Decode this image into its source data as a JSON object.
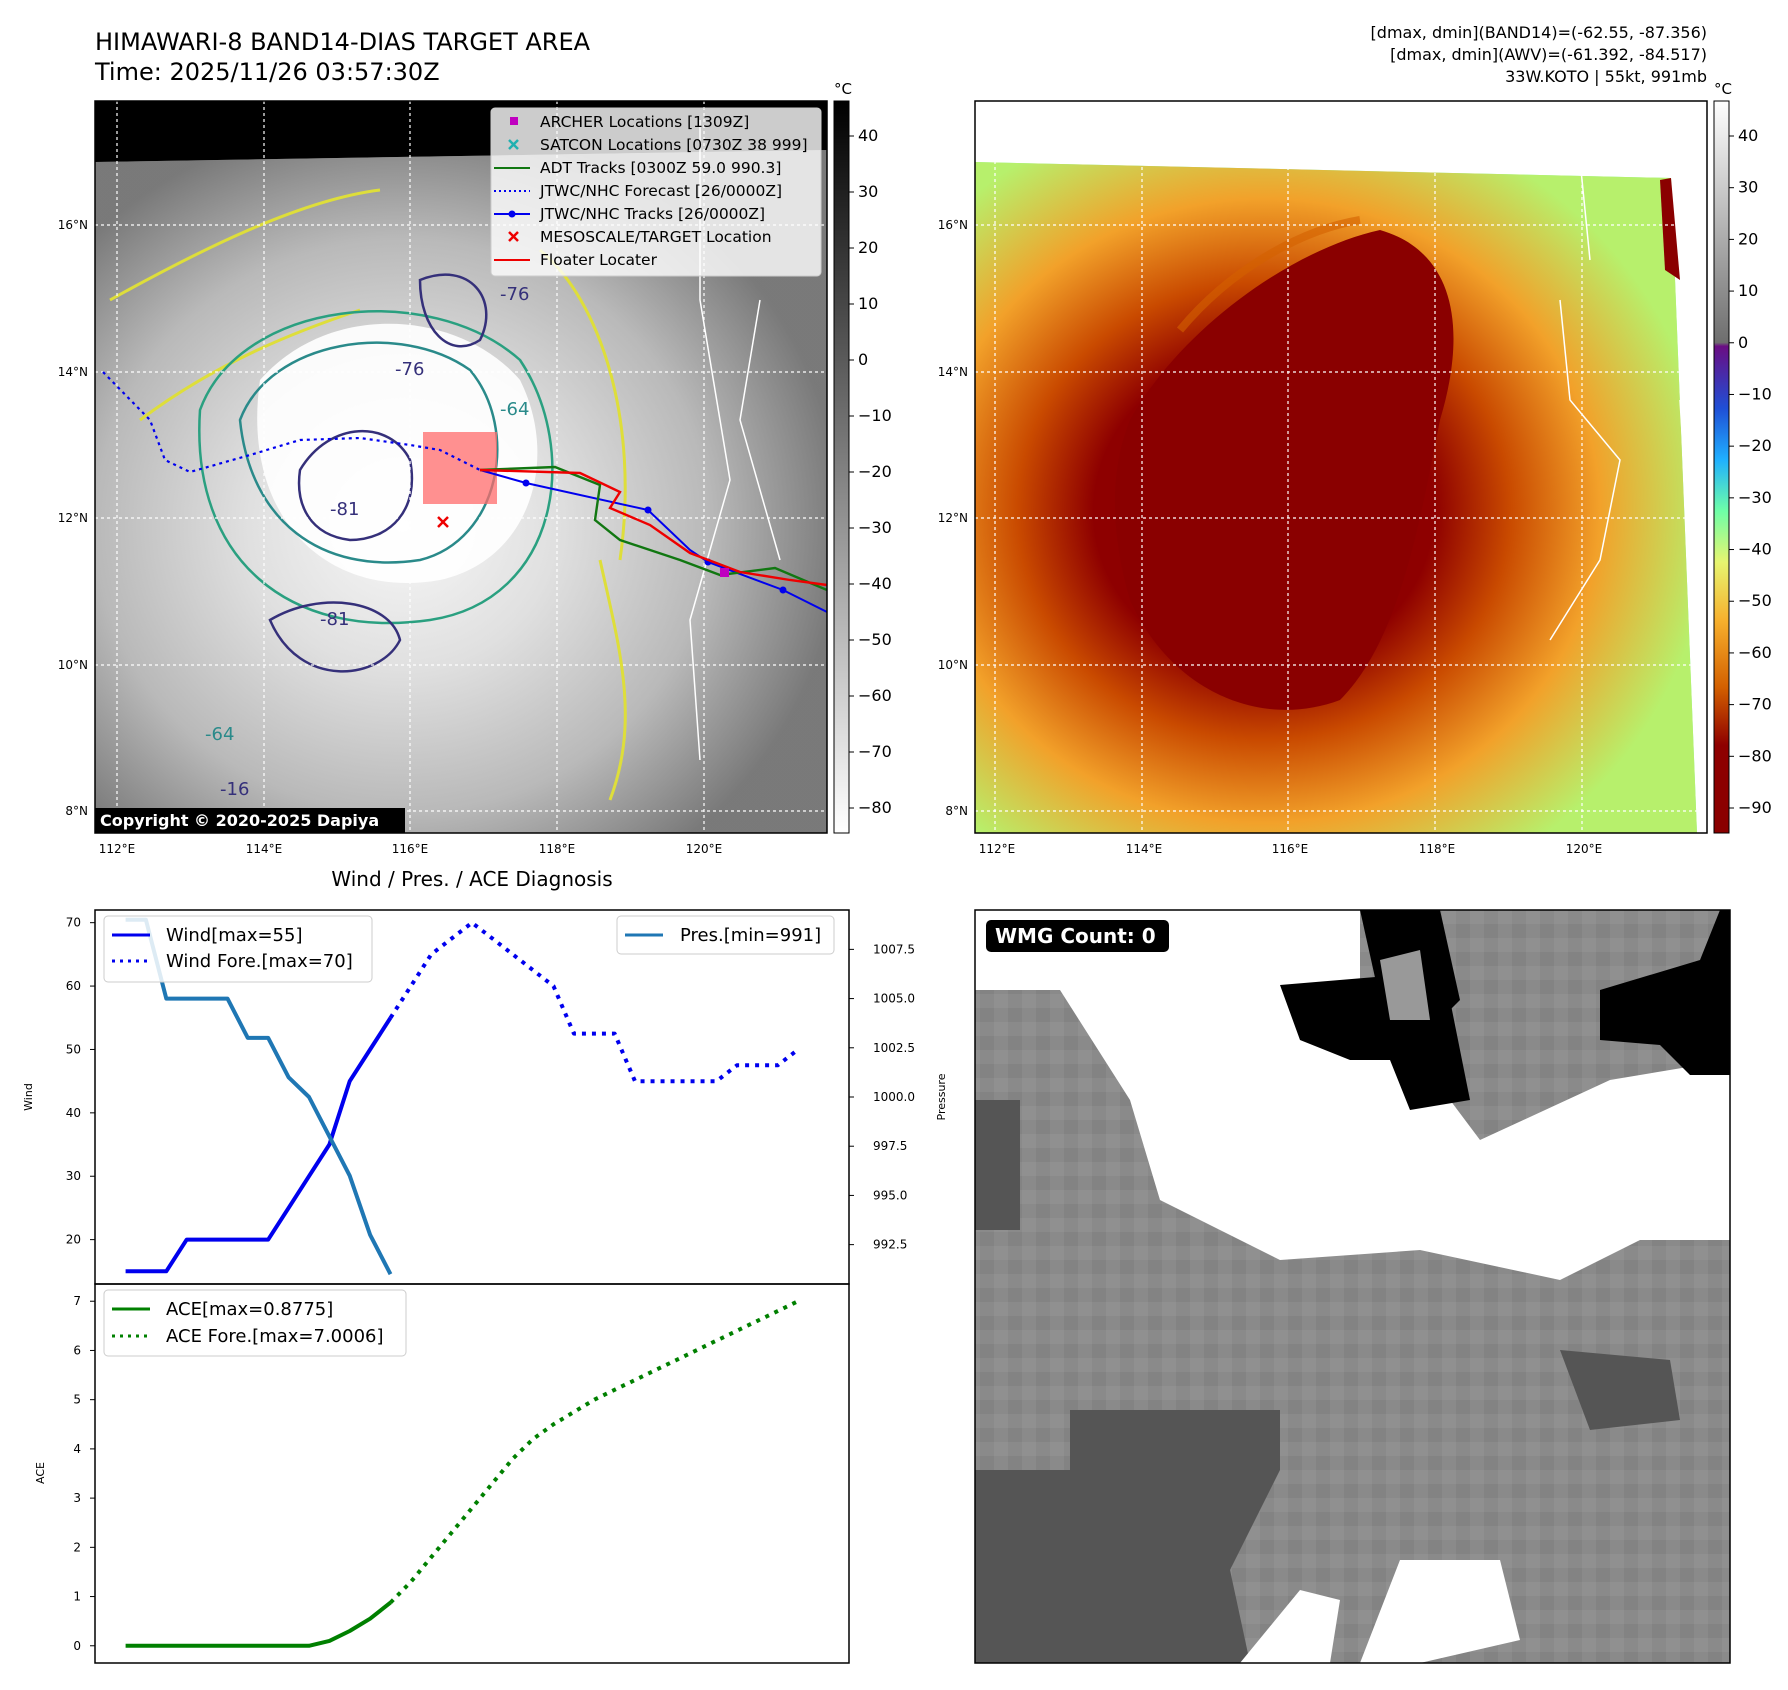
{
  "header": {
    "title_line1": "HIMAWARI-8 BAND14-DIAS TARGET AREA",
    "title_line2": "Time: 2025/11/26 03:57:30Z",
    "info_line1": "[dmax, dmin](BAND14)=(-62.55, -87.356)",
    "info_line2": "[dmax, dmin](AWV)=(-61.392, -84.517)",
    "info_line3": "33W.KOTO | 55kt, 991mb"
  },
  "map_left": {
    "copyright": "Copyright © 2020-2025 Dapiya",
    "lon_ticks": [
      "112°E",
      "114°E",
      "116°E",
      "118°E",
      "120°E"
    ],
    "lat_ticks": [
      "16°N",
      "14°N",
      "12°N",
      "10°N",
      "8°N"
    ],
    "contour_labels": [
      "-76",
      "-76",
      "-64",
      "-81",
      "-81",
      "-64",
      "-16"
    ],
    "legend": [
      {
        "label": "ARCHER Locations [1309Z]",
        "color": "#c000c0",
        "marker": "square"
      },
      {
        "label": "SATCON Locations [0730Z 38 999]",
        "color": "#20b0b0",
        "marker": "x"
      },
      {
        "label": "ADT Tracks [0300Z 59.0 990.3]",
        "color": "#117711",
        "marker": "line"
      },
      {
        "label": "JTWC/NHC Forecast [26/0000Z]",
        "color": "#0000ee",
        "marker": "dotted"
      },
      {
        "label": "JTWC/NHC Tracks [26/0000Z]",
        "color": "#0000ee",
        "marker": "line-dot"
      },
      {
        "label": "MESOSCALE/TARGET Location",
        "color": "#ee0000",
        "marker": "x"
      },
      {
        "label": "Floater Locater",
        "color": "#ee0000",
        "marker": "line"
      }
    ]
  },
  "colorbar_left": {
    "unit": "°C",
    "ticks": [
      "40",
      "30",
      "20",
      "10",
      "0",
      "−10",
      "−20",
      "−30",
      "−40",
      "−50",
      "−60",
      "−70",
      "−80"
    ]
  },
  "map_right": {
    "lon_ticks": [
      "112°E",
      "114°E",
      "116°E",
      "118°E",
      "120°E"
    ],
    "lat_ticks": [
      "16°N",
      "14°N",
      "12°N",
      "10°N",
      "8°N"
    ]
  },
  "colorbar_right": {
    "unit": "°C",
    "ticks": [
      "40",
      "30",
      "20",
      "10",
      "0",
      "−10",
      "−20",
      "−30",
      "−40",
      "−50",
      "−60",
      "−70",
      "−80",
      "−90"
    ]
  },
  "wmg_panel": {
    "label": "WMG Count: 0"
  },
  "chart_data": [
    {
      "type": "line",
      "title": "Wind / Pres. / ACE Diagnosis",
      "ylabel": "Wind",
      "y2label": "Pressure",
      "ylim": [
        13,
        72
      ],
      "y2lim": [
        990.5,
        1009.5
      ],
      "yticks": [
        20,
        30,
        40,
        50,
        60,
        70
      ],
      "y2ticks": [
        "992.5",
        "995.0",
        "997.5",
        "1000.0",
        "1002.5",
        "1005.0",
        "1007.5"
      ],
      "xlim": [
        -1.5,
        35.5
      ],
      "series": [
        {
          "name": "Wind[max=55]",
          "style": "solid",
          "color": "#0000ee",
          "axis": "left",
          "x": [
            0,
            1,
            2,
            3,
            4,
            5,
            6,
            7,
            8,
            9,
            10,
            11,
            12,
            13
          ],
          "y": [
            15,
            15,
            15,
            20,
            20,
            20,
            20,
            20,
            25,
            30,
            35,
            45,
            50,
            55
          ]
        },
        {
          "name": "Wind Fore.[max=70]",
          "style": "dotted",
          "color": "#0000ee",
          "axis": "left",
          "x": [
            13,
            14,
            15,
            16,
            17,
            18,
            19,
            20,
            21,
            22,
            23,
            24,
            25,
            26,
            27,
            28,
            29,
            30,
            31,
            32,
            33
          ],
          "y": [
            55,
            60,
            65,
            67.5,
            70,
            67.5,
            65,
            62.5,
            60,
            52.5,
            52.5,
            52.5,
            45,
            45,
            45,
            45,
            45,
            47.5,
            47.5,
            47.5,
            50
          ]
        },
        {
          "name": "Pres.[min=991]",
          "style": "solid",
          "color": "#1f77b4",
          "axis": "right",
          "x": [
            0,
            1,
            2,
            3,
            4,
            5,
            6,
            7,
            8,
            9,
            10,
            11,
            12,
            13
          ],
          "y": [
            1009,
            1009,
            1005,
            1005,
            1005,
            1005,
            1003,
            1003,
            1001,
            1000,
            998,
            996,
            993,
            991
          ]
        }
      ]
    },
    {
      "type": "line",
      "ylabel": "ACE",
      "ylim": [
        -0.35,
        7.35
      ],
      "yticks": [
        0,
        1,
        2,
        3,
        4,
        5,
        6,
        7
      ],
      "xlim": [
        -1.5,
        35.5
      ],
      "series": [
        {
          "name": "ACE[max=0.8775]",
          "style": "solid",
          "color": "#008000",
          "x": [
            0,
            1,
            2,
            3,
            4,
            5,
            6,
            7,
            8,
            9,
            10,
            11,
            12,
            13
          ],
          "y": [
            0,
            0,
            0,
            0,
            0,
            0,
            0,
            0,
            0,
            0,
            0.1,
            0.3,
            0.55,
            0.8775
          ]
        },
        {
          "name": "ACE Fore.[max=7.0006]",
          "style": "dotted",
          "color": "#008000",
          "x": [
            13,
            14,
            15,
            16,
            17,
            18,
            19,
            20,
            21,
            22,
            23,
            24,
            25,
            26,
            27,
            28,
            29,
            30,
            31,
            32,
            33
          ],
          "y": [
            0.8775,
            1.3,
            1.8,
            2.3,
            2.8,
            3.3,
            3.8,
            4.2,
            4.5,
            4.75,
            5.0,
            5.2,
            5.4,
            5.6,
            5.8,
            6.0,
            6.2,
            6.4,
            6.6,
            6.8,
            7.0006
          ]
        }
      ]
    }
  ]
}
